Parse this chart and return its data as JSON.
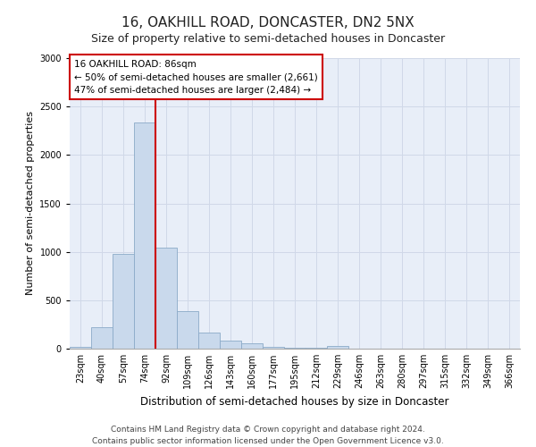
{
  "title": "16, OAKHILL ROAD, DONCASTER, DN2 5NX",
  "subtitle": "Size of property relative to semi-detached houses in Doncaster",
  "xlabel": "Distribution of semi-detached houses by size in Doncaster",
  "ylabel": "Number of semi-detached properties",
  "categories": [
    "23sqm",
    "40sqm",
    "57sqm",
    "74sqm",
    "92sqm",
    "109sqm",
    "126sqm",
    "143sqm",
    "160sqm",
    "177sqm",
    "195sqm",
    "212sqm",
    "229sqm",
    "246sqm",
    "263sqm",
    "280sqm",
    "297sqm",
    "315sqm",
    "332sqm",
    "349sqm",
    "366sqm"
  ],
  "values": [
    15,
    220,
    975,
    2335,
    1040,
    390,
    165,
    85,
    55,
    20,
    8,
    5,
    30,
    2,
    0,
    0,
    0,
    0,
    0,
    0,
    0
  ],
  "bar_color": "#c9d9ec",
  "bar_edge_color": "#8baac8",
  "red_line_color": "#cc0000",
  "red_line_index": 4,
  "annotation_text": "16 OAKHILL ROAD: 86sqm\n← 50% of semi-detached houses are smaller (2,661)\n47% of semi-detached houses are larger (2,484) →",
  "annotation_box_color": "#ffffff",
  "annotation_box_edge": "#cc0000",
  "ylim": [
    0,
    3000
  ],
  "yticks": [
    0,
    500,
    1000,
    1500,
    2000,
    2500,
    3000
  ],
  "grid_color": "#d0d8e8",
  "background_color": "#e8eef8",
  "footer_line1": "Contains HM Land Registry data © Crown copyright and database right 2024.",
  "footer_line2": "Contains public sector information licensed under the Open Government Licence v3.0.",
  "title_fontsize": 11,
  "subtitle_fontsize": 9,
  "xlabel_fontsize": 8.5,
  "ylabel_fontsize": 8,
  "tick_fontsize": 7,
  "annotation_fontsize": 7.5,
  "footer_fontsize": 6.5
}
